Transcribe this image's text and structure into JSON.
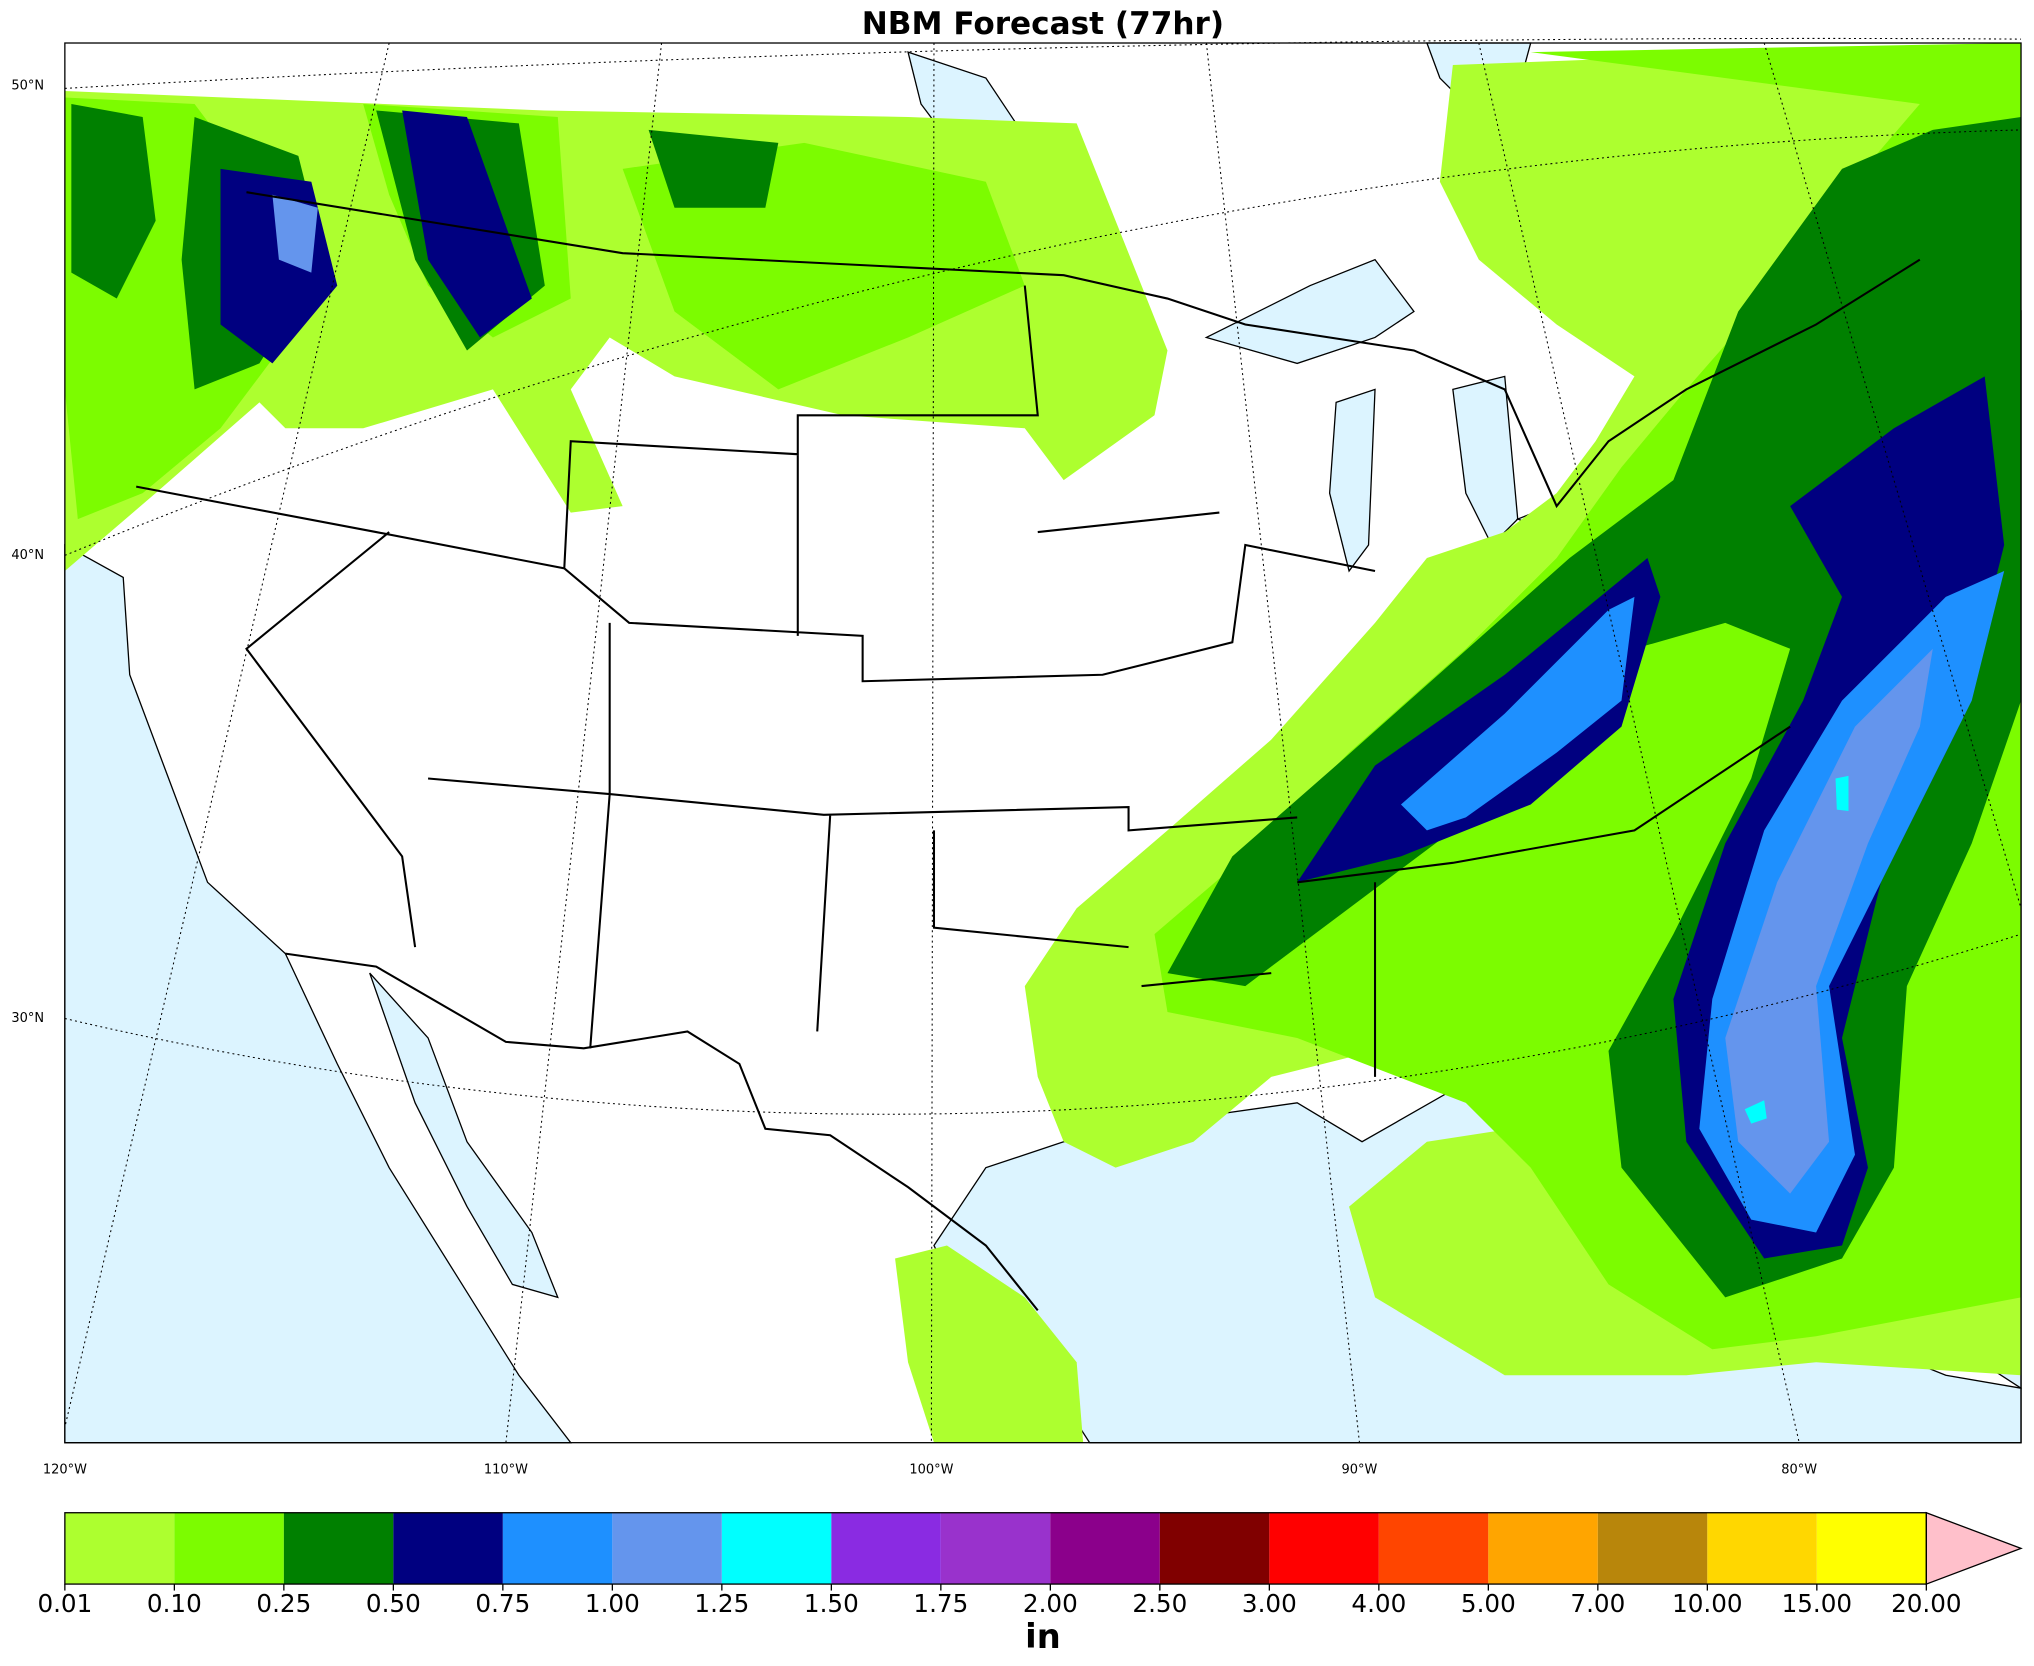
{
  "title": "NBM Forecast (77hr)",
  "map": {
    "lat_labels": [
      "50°N",
      "40°N",
      "30°N"
    ],
    "lon_labels": [
      "120°W",
      "110°W",
      "100°W",
      "90°W",
      "80°W"
    ]
  },
  "colorbar": {
    "label": "in",
    "ticks": [
      0.01,
      {
        "value": 0.1,
        "label": "0.10"
      },
      0.25,
      {
        "value": 0.5,
        "label": "0.50"
      },
      0.75,
      {
        "value": 1,
        "label": "1.00"
      },
      1.25,
      {
        "value": 1.5,
        "label": "1.50"
      },
      1.75,
      {
        "value": 2,
        "label": "2.00"
      },
      {
        "value": 2.5,
        "label": "2.50"
      },
      {
        "value": 3,
        "label": "3.00"
      },
      {
        "value": 4,
        "label": "4.00"
      },
      {
        "value": 5,
        "label": "5.00"
      },
      {
        "value": 7,
        "label": "7.00"
      },
      {
        "value": 10,
        "label": "10.00"
      },
      {
        "value": 15,
        "label": "15.00"
      },
      {
        "value": 20,
        "label": "20.00"
      }
    ],
    "colors": [
      "#adff2f",
      "#7cfc00",
      "#008000",
      "#000080",
      "#1e90ff",
      "#6495ed",
      "#00ffff",
      "#8a2be2",
      "#9932cc",
      "#8b008b",
      "#800000",
      "#ff0000",
      "#ff4500",
      "#ffa500",
      "#b8860b",
      "#ffd700",
      "#ffff00"
    ],
    "extend_color": "#ffc0cb"
  }
}
